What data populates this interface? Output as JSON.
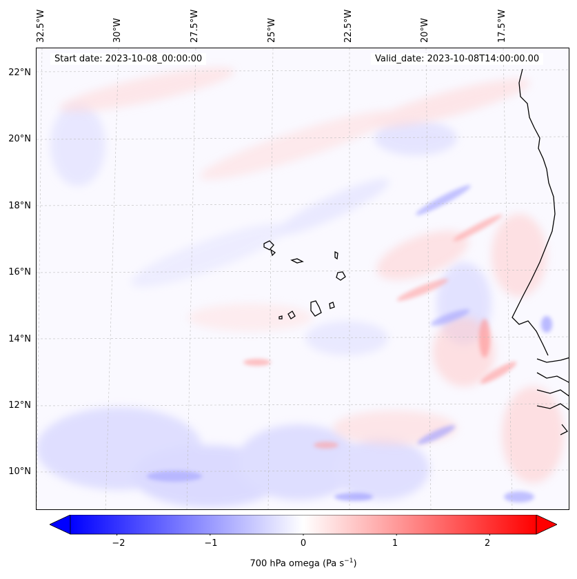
{
  "header": {
    "start_date": "Start date: 2023-10-08_00:00:00",
    "valid_date": "Valid_date: 2023-10-08T14:00:00.00"
  },
  "map": {
    "lon_labels": [
      "32.5°W",
      "30°W",
      "27.5°W",
      "25°W",
      "22.5°W",
      "20°W",
      "17.5°W"
    ],
    "lat_labels": [
      "22°N",
      "20°N",
      "18°N",
      "16°N",
      "14°N",
      "12°N",
      "10°N"
    ],
    "background_color": "#faf9ff",
    "coastline_color": "#000000"
  },
  "colorbar": {
    "label_prefix": "700 hPa omega (Pa s",
    "label_exp": "−1",
    "label_suffix": ")",
    "ticks": [
      "−2",
      "−1",
      "0",
      "1",
      "2"
    ],
    "tick_values": [
      -2,
      -1,
      0,
      1,
      2
    ],
    "range": [
      -2.5,
      2.5
    ],
    "extend": "both",
    "min_color": "#0000ff",
    "mid_color": "#ffffff",
    "max_color": "#ff0000"
  }
}
